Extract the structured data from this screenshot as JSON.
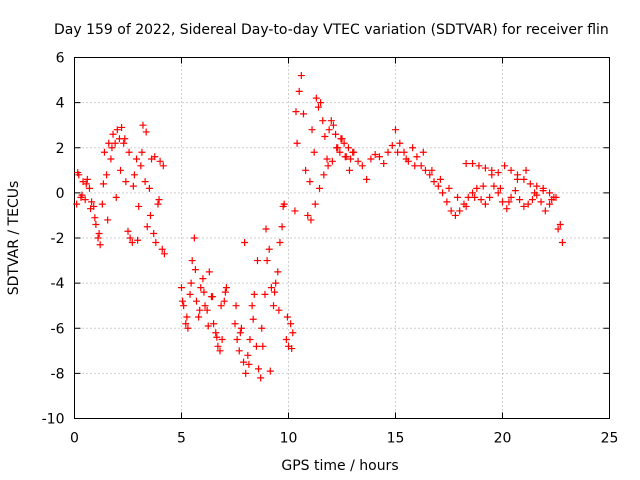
{
  "chart_data": {
    "type": "scatter",
    "title": "Day 159 of 2022, Sidereal Day-to-day VTEC variation (SDTVAR) for receiver flin",
    "xlabel": "GPS time / hours",
    "ylabel": "SDTVAR / TECUs",
    "xlim": [
      0,
      25
    ],
    "ylim": [
      -10,
      6
    ],
    "xticks": [
      0,
      5,
      10,
      15,
      20,
      25
    ],
    "yticks": [
      -10,
      -8,
      -6,
      -4,
      -2,
      0,
      2,
      4,
      6
    ],
    "xtick_labels": [
      "0",
      "5",
      "10",
      "15",
      "20",
      "25"
    ],
    "ytick_labels": [
      "-10",
      "-8",
      "-6",
      "-4",
      "-2",
      "0",
      "2",
      "4",
      "6"
    ],
    "grid": true,
    "marker": "+",
    "color": "#ff0000",
    "series": [
      {
        "name": "SDTVAR",
        "x": [
          0.1,
          0.2,
          0.3,
          0.4,
          0.5,
          0.6,
          0.7,
          0.8,
          0.9,
          1.0,
          1.1,
          1.2,
          1.3,
          1.4,
          1.5,
          1.6,
          1.7,
          1.8,
          1.9,
          2.0,
          2.1,
          2.2,
          2.3,
          2.4,
          2.5,
          2.6,
          2.7,
          2.8,
          2.9,
          3.0,
          3.1,
          3.2,
          3.3,
          3.4,
          3.5,
          3.6,
          3.7,
          3.8,
          3.9,
          4.0,
          4.1,
          4.2,
          0.15,
          0.35,
          0.55,
          0.75,
          0.95,
          1.15,
          1.35,
          1.55,
          1.75,
          1.95,
          2.15,
          2.35,
          2.55,
          2.75,
          2.95,
          3.15,
          3.35,
          3.55,
          3.75,
          3.95,
          4.15,
          5.0,
          5.1,
          5.2,
          5.3,
          5.4,
          5.5,
          5.6,
          5.7,
          5.8,
          5.9,
          6.0,
          6.1,
          6.2,
          6.3,
          6.4,
          6.5,
          6.6,
          6.7,
          6.8,
          6.9,
          7.0,
          7.1,
          5.05,
          5.25,
          5.45,
          5.65,
          5.85,
          6.05,
          6.25,
          6.45,
          6.65,
          6.85,
          7.05,
          7.5,
          7.6,
          7.7,
          7.8,
          7.9,
          8.0,
          8.1,
          8.2,
          8.3,
          8.4,
          8.5,
          8.6,
          8.7,
          8.8,
          8.9,
          9.0,
          9.1,
          9.2,
          9.3,
          9.4,
          9.5,
          9.6,
          9.7,
          9.8,
          9.9,
          10.0,
          10.1,
          10.2,
          10.3,
          10.4,
          10.5,
          7.55,
          7.75,
          7.95,
          8.15,
          8.35,
          8.55,
          8.75,
          8.95,
          9.15,
          9.35,
          9.55,
          9.75,
          9.95,
          10.15,
          10.35,
          10.6,
          10.7,
          10.8,
          10.9,
          11.0,
          11.1,
          11.2,
          11.3,
          11.4,
          11.5,
          11.6,
          11.7,
          11.8,
          11.9,
          12.0,
          12.1,
          12.2,
          12.3,
          12.4,
          12.5,
          12.6,
          12.7,
          12.8,
          12.9,
          13.0,
          11.05,
          11.25,
          11.45,
          11.65,
          11.85,
          12.05,
          12.25,
          12.45,
          12.65,
          12.85,
          13.05,
          13.25,
          13.45,
          13.65,
          13.85,
          14.05,
          14.25,
          14.45,
          14.65,
          14.85,
          15.0,
          15.2,
          15.4,
          15.6,
          15.8,
          16.0,
          16.2,
          16.4,
          16.6,
          16.8,
          17.0,
          17.2,
          17.4,
          17.6,
          17.8,
          18.0,
          18.2,
          18.4,
          18.6,
          18.8,
          19.0,
          19.2,
          19.4,
          19.6,
          19.8,
          20.0,
          20.2,
          20.4,
          20.6,
          20.8,
          21.0,
          21.2,
          21.4,
          21.6,
          21.8,
          22.0,
          22.2,
          22.4,
          22.6,
          22.8,
          15.1,
          15.5,
          15.9,
          16.3,
          16.7,
          17.1,
          17.5,
          17.9,
          18.3,
          18.7,
          19.1,
          19.5,
          19.9,
          20.3,
          20.7,
          21.1,
          21.5,
          21.9,
          22.3,
          22.7,
          18.3,
          18.6,
          18.9,
          19.2,
          19.5,
          19.8,
          20.1,
          20.4,
          20.7,
          21.0,
          21.3,
          21.6,
          21.9,
          22.2,
          22.5
        ],
        "y": [
          -0.5,
          0.8,
          -0.2,
          0.5,
          -0.3,
          0.6,
          0.2,
          -0.4,
          -0.6,
          -1.4,
          -2.0,
          -2.3,
          -0.5,
          1.8,
          0.8,
          2.2,
          1.5,
          2.6,
          2.2,
          2.8,
          2.4,
          2.9,
          2.2,
          0.5,
          -1.7,
          -2.0,
          -2.2,
          0.8,
          1.5,
          -0.6,
          1.2,
          3.0,
          0.5,
          -1.5,
          0.2,
          1.5,
          -1.8,
          -2.2,
          -0.5,
          1.4,
          -2.5,
          -2.7,
          0.9,
          -0.1,
          0.4,
          -0.7,
          -1.1,
          -1.8,
          0.4,
          -1.2,
          2.0,
          -0.2,
          1.0,
          2.4,
          1.8,
          0.3,
          -2.1,
          1.8,
          2.7,
          -1.0,
          1.6,
          -0.3,
          1.2,
          -4.2,
          -5.0,
          -5.8,
          -6.0,
          -4.5,
          -3.0,
          -2.0,
          -4.8,
          -5.5,
          -4.2,
          -3.8,
          -5.0,
          -5.2,
          -3.5,
          -4.6,
          -5.8,
          -6.2,
          -6.8,
          -7.0,
          -6.5,
          -4.8,
          -4.2,
          -4.8,
          -5.5,
          -4.0,
          -3.4,
          -5.2,
          -4.4,
          -5.9,
          -4.6,
          -6.4,
          -5.0,
          -4.4,
          -5.8,
          -6.5,
          -7.0,
          -6.0,
          -7.5,
          -8.0,
          -7.2,
          -6.5,
          -5.0,
          -4.5,
          -6.8,
          -7.8,
          -8.2,
          -6.8,
          -4.5,
          -3.0,
          -2.5,
          -4.2,
          -5.0,
          -4.0,
          -3.5,
          -2.2,
          -1.5,
          -0.5,
          -6.5,
          -6.8,
          -5.8,
          -6.2,
          -0.8,
          2.2,
          4.5,
          -5.0,
          -6.2,
          -2.2,
          -7.6,
          -5.6,
          -3.0,
          -6.0,
          -1.6,
          -7.9,
          -4.4,
          -5.2,
          -0.6,
          -5.5,
          -6.9,
          3.6,
          5.2,
          3.5,
          1.0,
          -1.0,
          0.5,
          2.8,
          1.8,
          4.2,
          3.8,
          4.0,
          3.2,
          2.5,
          1.5,
          2.8,
          3.2,
          3.0,
          2.6,
          2.0,
          1.8,
          2.4,
          2.2,
          1.6,
          2.0,
          1.5,
          1.8,
          -1.2,
          -0.5,
          0.2,
          0.8,
          1.2,
          1.4,
          2.0,
          2.4,
          1.6,
          1.0,
          1.8,
          1.4,
          1.2,
          0.6,
          1.5,
          1.7,
          1.6,
          1.3,
          1.8,
          2.1,
          2.8,
          2.2,
          1.8,
          1.4,
          2.0,
          1.6,
          1.2,
          1.0,
          0.8,
          0.5,
          0.3,
          0.0,
          -0.4,
          -0.8,
          -1.0,
          -0.8,
          -0.5,
          -0.2,
          0.0,
          0.2,
          -0.3,
          -0.5,
          -0.2,
          0.3,
          0.0,
          -0.4,
          -0.7,
          -0.2,
          0.1,
          -0.3,
          -0.6,
          -0.5,
          -0.3,
          -0.1,
          -0.4,
          -0.8,
          -0.5,
          -0.2,
          -1.6,
          -2.2,
          1.8,
          1.5,
          1.2,
          1.8,
          1.0,
          0.6,
          0.2,
          -0.2,
          -0.6,
          -0.2,
          0.3,
          0.8,
          0.2,
          -0.4,
          0.6,
          1.0,
          0.0,
          0.1,
          -0.3,
          -1.4,
          1.3,
          1.3,
          1.2,
          1.1,
          1.0,
          0.9,
          1.2,
          1.0,
          0.8,
          0.6,
          0.4,
          0.3,
          0.2,
          0.0,
          -0.2
        ]
      }
    ]
  }
}
